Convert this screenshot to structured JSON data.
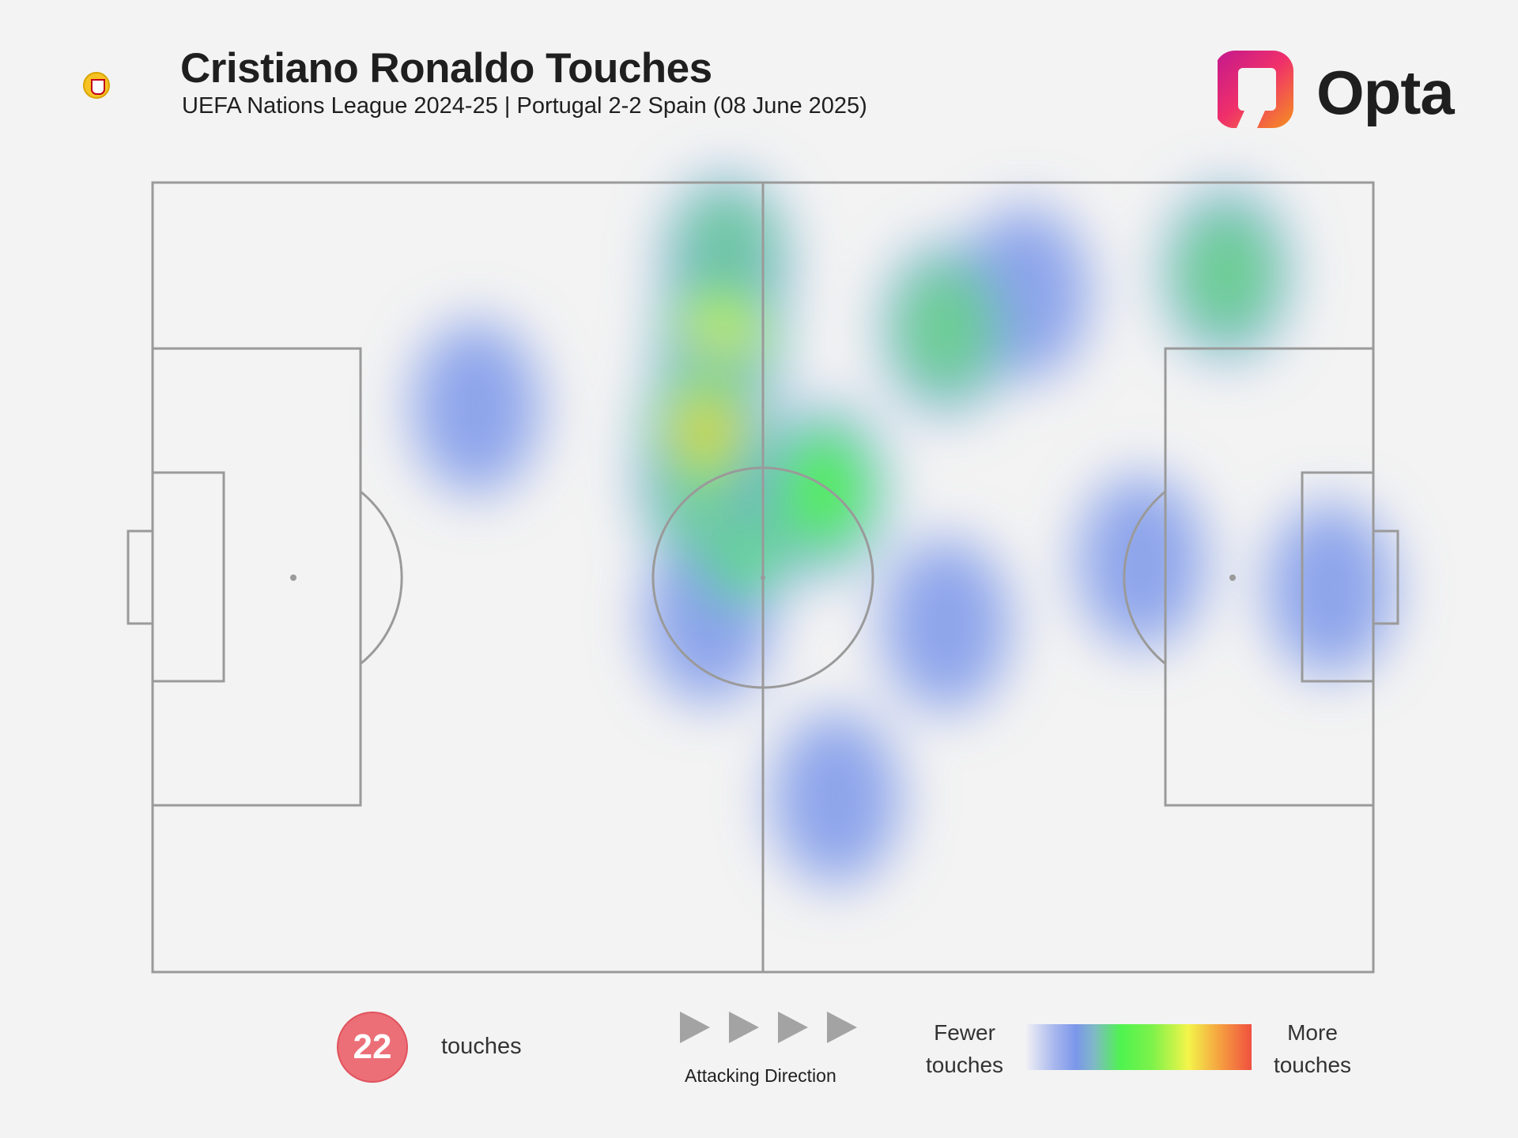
{
  "header": {
    "title": "Cristiano Ronaldo Touches",
    "subtitle": "UEFA Nations League 2024-25 | Portugal 2-2 Spain (08 June 2025)",
    "logo_text": "Opta",
    "flag": {
      "name": "portugal-flag",
      "colors": [
        "#046a38",
        "#da291c",
        "#f7c324"
      ]
    }
  },
  "footer": {
    "touch_count": "22",
    "touch_label": "touches",
    "direction_label": "Attacking Direction",
    "legend_low_line1": "Fewer",
    "legend_low_line2": "touches",
    "legend_high_line1": "More",
    "legend_high_line2": "touches"
  },
  "colors": {
    "background": "#f3f3f3",
    "pitch_lines": "#9a9a9a",
    "badge": "#ec6f78",
    "heat_scale": [
      "#7b96ea",
      "#4ff34f",
      "#f4f44a",
      "#f0603f"
    ]
  },
  "chart_data": {
    "type": "heatmap",
    "title": "Cristiano Ronaldo Touches",
    "subtitle": "UEFA Nations League 2024-25 | Portugal 2-2 Spain (08 June 2025)",
    "pitch": {
      "length": 100,
      "width": 100,
      "attacking_direction": "left-to-right"
    },
    "total_touches": 22,
    "scale_labels": [
      "Fewer touches",
      "More touches"
    ],
    "hotspots": [
      {
        "x": 45.3,
        "y": 31.5,
        "intensity": 1.0
      },
      {
        "x": 46.5,
        "y": 20.0,
        "intensity": 0.7
      },
      {
        "x": 45.0,
        "y": 38.0,
        "intensity": 0.75
      },
      {
        "x": 47.0,
        "y": 10.0,
        "intensity": 0.4
      },
      {
        "x": 48.0,
        "y": 44.0,
        "intensity": 0.55
      },
      {
        "x": 55.0,
        "y": 39.0,
        "intensity": 0.6
      },
      {
        "x": 45.5,
        "y": 55.0,
        "intensity": 0.35
      },
      {
        "x": 26.5,
        "y": 28.5,
        "intensity": 0.3
      },
      {
        "x": 65.0,
        "y": 18.5,
        "intensity": 0.45
      },
      {
        "x": 71.5,
        "y": 14.0,
        "intensity": 0.35
      },
      {
        "x": 88.0,
        "y": 11.5,
        "intensity": 0.5
      },
      {
        "x": 65.0,
        "y": 56.0,
        "intensity": 0.35
      },
      {
        "x": 56.0,
        "y": 78.0,
        "intensity": 0.3
      },
      {
        "x": 81.0,
        "y": 48.0,
        "intensity": 0.3
      },
      {
        "x": 96.5,
        "y": 51.5,
        "intensity": 0.32
      }
    ]
  }
}
